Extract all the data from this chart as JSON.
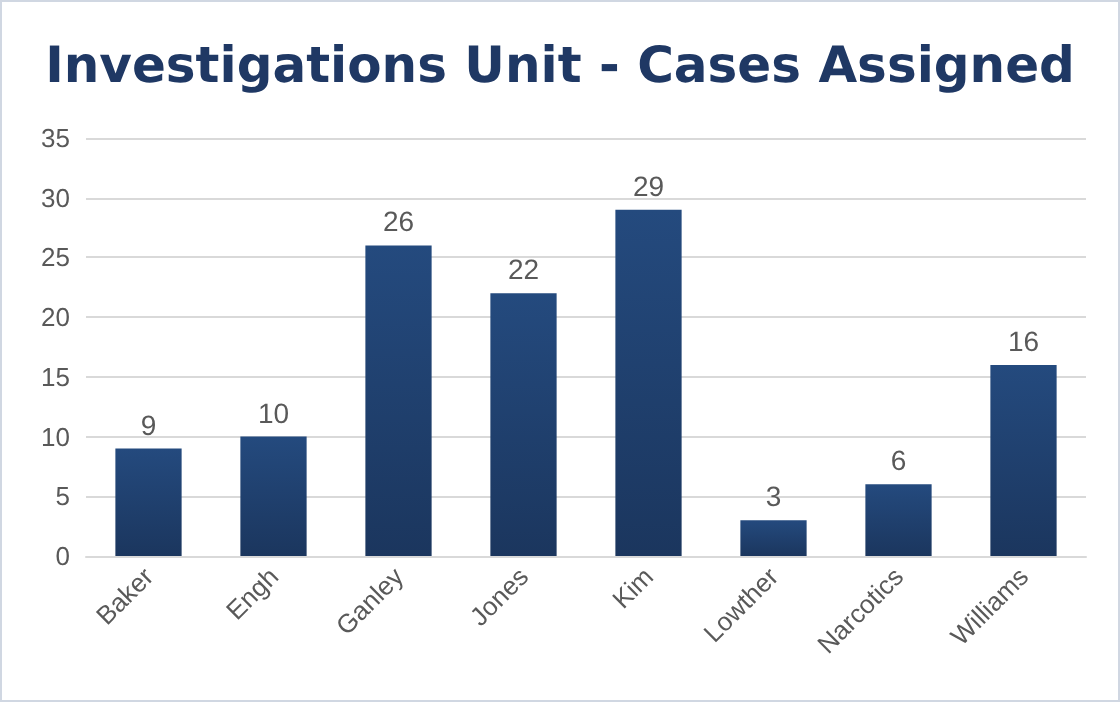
{
  "chart_data": {
    "type": "bar",
    "title": "Investigations Unit - Cases Assigned",
    "categories": [
      "Baker",
      "Engh",
      "Ganley",
      "Jones",
      "Kim",
      "Lowther",
      "Narcotics",
      "Williams"
    ],
    "values": [
      9,
      10,
      26,
      22,
      29,
      3,
      6,
      16
    ],
    "color": "#244a7e",
    "ylim": [
      0,
      35
    ],
    "yticks": [
      0,
      5,
      10,
      15,
      20,
      25,
      30,
      35
    ],
    "grid": "y",
    "data_labels": true
  }
}
